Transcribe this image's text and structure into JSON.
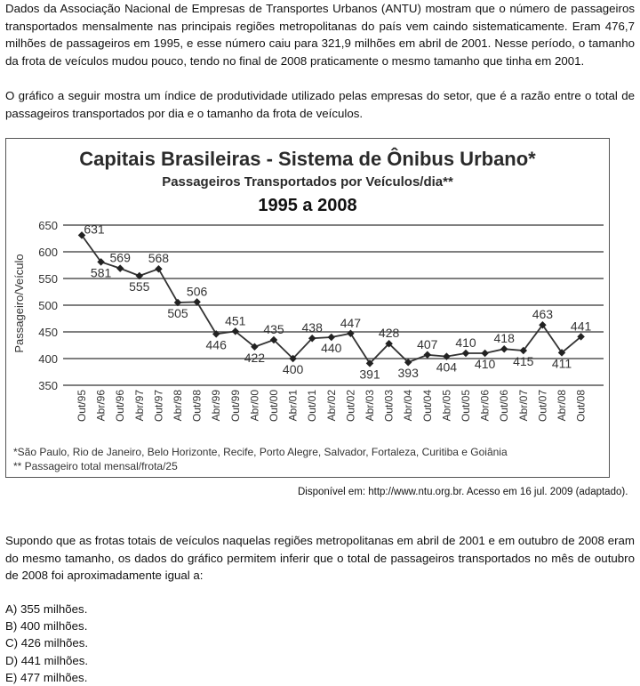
{
  "intro_paragraph": "Dados da Associação Nacional de Empresas de Transportes Urbanos (ANTU) mostram que o número de passageiros transportados mensalmente nas principais regiões metropolitanas do país vem caindo sistematicamente. Eram 476,7 milhões de passageiros em 1995, e esse número caiu para 321,9 milhões em abril de 2001. Nesse período, o tamanho da frota de veículos mudou pouco, tendo no final de 2008 praticamente o mesmo tamanho que tinha em 2001.",
  "graph_intro": "O gráfico a seguir mostra um índice de produtividade utilizado pelas empresas do setor, que é a razão entre o total de passageiros transportados por dia e o tamanho da frota de veículos.",
  "chart_data": {
    "type": "line",
    "title": "Capitais Brasileiras - Sistema de Ônibus Urbano*",
    "subtitle": "Passageiros Transportados por Veículos/dia**",
    "period": "1995 a 2008",
    "ylabel": "Passageiro/Veículo",
    "xlabel": "",
    "ylim": [
      350,
      650
    ],
    "yticks": [
      350,
      400,
      450,
      500,
      550,
      600,
      650
    ],
    "grid": true,
    "categories": [
      "Out/95",
      "Abr/96",
      "Out/96",
      "Abr/97",
      "Out/97",
      "Abr/98",
      "Out/98",
      "Abr/99",
      "Out/99",
      "Abr/00",
      "Out/00",
      "Abr/01",
      "Out/01",
      "Abr/02",
      "Out/02",
      "Abr/03",
      "Out/03",
      "Abr/04",
      "Out/04",
      "Abr/05",
      "Out/05",
      "Abr/06",
      "Out/06",
      "Abr/07",
      "Out/07",
      "Abr/08",
      "Out/08"
    ],
    "values": [
      631,
      581,
      569,
      555,
      568,
      505,
      506,
      446,
      451,
      422,
      435,
      400,
      438,
      440,
      447,
      391,
      428,
      393,
      407,
      404,
      410,
      410,
      418,
      415,
      463,
      411,
      441
    ],
    "label_above": [
      true,
      false,
      true,
      false,
      true,
      false,
      true,
      false,
      true,
      false,
      true,
      false,
      true,
      false,
      true,
      false,
      true,
      false,
      true,
      false,
      true,
      false,
      true,
      false,
      true,
      false,
      true
    ],
    "footnotes": [
      "*São Paulo, Rio de Janeiro, Belo Horizonte, Recife, Porto Alegre, Salvador, Fortaleza, Curitiba e Goiânia",
      "** Passageiro total mensal/frota/25"
    ]
  },
  "source": "Disponível em: http://www.ntu.org.br. Acesso em 16 jul. 2009 (adaptado).",
  "question": "Supondo que as frotas totais de veículos naquelas regiões metropolitanas em abril de 2001 e em outubro de 2008 eram do mesmo tamanho, os dados do gráfico permitem inferir que o total de passageiros transportados no mês de outubro de 2008 foi aproximadamente igual a:",
  "options": [
    "A) 355 milhões.",
    "B) 400 milhões.",
    "C) 426 milhões.",
    "D) 441 milhões.",
    "E) 477 milhões."
  ]
}
